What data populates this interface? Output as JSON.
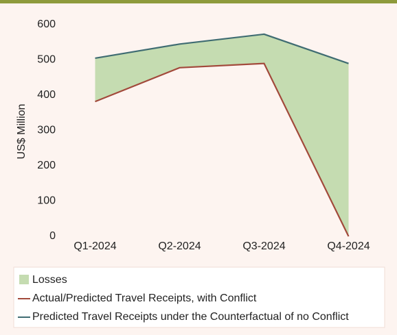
{
  "chart_data": {
    "type": "line",
    "ylabel": "US$ Million",
    "categories": [
      "Q1-2024",
      "Q2-2024",
      "Q3-2024",
      "Q4-2024"
    ],
    "area": {
      "name": "Losses",
      "color": "#c5dcb1"
    },
    "series": [
      {
        "name": "Actual/Predicted Travel Receipts, with Conflict",
        "color": "#a2493b",
        "values": [
          382,
          478,
          490,
          0
        ]
      },
      {
        "name": "Predicted Travel Receipts under the Counterfactual of no Conflict",
        "color": "#3f6c72",
        "values": [
          505,
          545,
          573,
          490
        ]
      }
    ],
    "ylim": [
      0,
      600
    ],
    "yticks": [
      0,
      100,
      200,
      300,
      400,
      500,
      600
    ],
    "grid": false
  }
}
